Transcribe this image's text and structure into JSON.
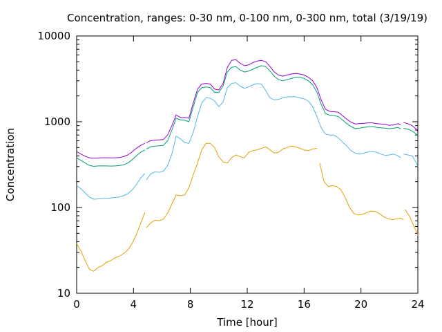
{
  "chart_data": {
    "type": "line",
    "title": "Concentration, ranges: 0-30 nm, 0-100 nm, 0-300 nm, total (3/19/19)",
    "xlabel": "Time [hour]",
    "ylabel": "Concentration",
    "xlim": [
      0,
      24
    ],
    "ylim": [
      10,
      10000
    ],
    "y_scale": "log",
    "grid": false,
    "legend": "none",
    "x_ticks": [
      "0",
      "4",
      "8",
      "12",
      "16",
      "20",
      "24"
    ],
    "y_ticks": [
      "10",
      "100",
      "1000",
      "10000"
    ],
    "series": [
      {
        "color": "#e69f00",
        "segments": [
          {
            "x": [
              0.0,
              0.3,
              0.6,
              0.9,
              1.2,
              1.5,
              1.8,
              2.1,
              2.4,
              2.7,
              3.0,
              3.3,
              3.6,
              3.9,
              4.2,
              4.5,
              4.8
            ],
            "y": [
              38,
              31,
              24,
              19,
              18,
              20,
              21,
              23,
              24,
              26,
              27,
              29,
              32,
              38,
              48,
              65,
              88
            ]
          },
          {
            "x": [
              4.9,
              5.2,
              5.5,
              5.8,
              6.1,
              6.4,
              6.7,
              7.0,
              7.3,
              7.6,
              7.9,
              8.2,
              8.5,
              8.8,
              9.1,
              9.4,
              9.7,
              10.0,
              10.3,
              10.6,
              10.9,
              11.2,
              11.5,
              11.8,
              12.1,
              12.4,
              12.7,
              13.0,
              13.3,
              13.6,
              13.9,
              14.2,
              14.5,
              14.8,
              15.1,
              15.4,
              15.7,
              16.0,
              16.3,
              16.6,
              16.9
            ],
            "y": [
              58,
              66,
              71,
              70,
              73,
              86,
              110,
              140,
              137,
              140,
              170,
              240,
              330,
              470,
              560,
              560,
              500,
              390,
              340,
              330,
              380,
              410,
              390,
              380,
              440,
              460,
              470,
              490,
              510,
              470,
              430,
              440,
              480,
              500,
              520,
              510,
              490,
              470,
              460,
              480,
              490
            ]
          },
          {
            "x": [
              17.1,
              17.4,
              17.7,
              18.0,
              18.3,
              18.6,
              18.9,
              19.2,
              19.5,
              19.8,
              20.1,
              20.4,
              20.7,
              21.0,
              21.3,
              21.6,
              21.9,
              22.2,
              22.5,
              22.8,
              23.0
            ],
            "y": [
              330,
              200,
              176,
              180,
              175,
              160,
              130,
              100,
              85,
              82,
              83,
              87,
              91,
              90,
              85,
              78,
              74,
              72,
              74,
              75,
              72
            ]
          },
          {
            "x": [
              23.1,
              23.4,
              23.7,
              24.0
            ],
            "y": [
              95,
              80,
              62,
              48
            ]
          }
        ]
      },
      {
        "color": "#56b4e9",
        "segments": [
          {
            "x": [
              0.0,
              0.3,
              0.6,
              0.9,
              1.2,
              1.5,
              1.8,
              2.1,
              2.4,
              2.7,
              3.0,
              3.3,
              3.6,
              3.9,
              4.2,
              4.5,
              4.8
            ],
            "y": [
              180,
              165,
              148,
              132,
              125,
              126,
              127,
              128,
              129,
              131,
              133,
              137,
              145,
              160,
              185,
              220,
              250
            ]
          },
          {
            "x": [
              4.9,
              5.2,
              5.5,
              5.8,
              6.1,
              6.4,
              6.7,
              7.0,
              7.3,
              7.6,
              7.9,
              8.2,
              8.5,
              8.8,
              9.1,
              9.4,
              9.7,
              10.0,
              10.3,
              10.6,
              10.9,
              11.2,
              11.5,
              11.8,
              12.1,
              12.4,
              12.7,
              13.0,
              13.3,
              13.6,
              13.9,
              14.2,
              14.5,
              14.8,
              15.1,
              15.4,
              15.7,
              16.0,
              16.3,
              16.6,
              16.9,
              17.2,
              17.5,
              17.8,
              18.1,
              18.4,
              18.7,
              19.0,
              19.3,
              19.6,
              19.9,
              20.2,
              20.5,
              20.8,
              21.1,
              21.4,
              21.7,
              22.0,
              22.3,
              22.6,
              22.8
            ],
            "y": [
              210,
              245,
              260,
              258,
              265,
              310,
              420,
              680,
              630,
              570,
              560,
              750,
              1150,
              1650,
              1900,
              1880,
              1750,
              1500,
              1700,
              2500,
              2800,
              2850,
              2600,
              2450,
              2550,
              2700,
              2780,
              2750,
              2300,
              1900,
              1800,
              1820,
              1900,
              1950,
              1960,
              1950,
              1900,
              1850,
              1750,
              1500,
              1150,
              850,
              720,
              700,
              700,
              650,
              580,
              520,
              460,
              430,
              420,
              430,
              445,
              450,
              440,
              420,
              405,
              410,
              420,
              400,
              380
            ]
          },
          {
            "x": [
              23.0,
              23.3,
              23.6,
              23.9,
              24.0
            ],
            "y": [
              420,
              410,
              400,
              330,
              300
            ]
          }
        ]
      },
      {
        "color": "#009e73",
        "segments": [
          {
            "x": [
              0.0,
              0.3,
              0.6,
              0.9,
              1.2,
              1.5,
              1.8,
              2.1,
              2.4,
              2.7,
              3.0,
              3.3,
              3.6,
              3.9,
              4.2,
              4.5,
              4.8
            ],
            "y": [
              380,
              355,
              330,
              310,
              302,
              305,
              306,
              305,
              304,
              305,
              308,
              315,
              330,
              360,
              400,
              440,
              470
            ]
          },
          {
            "x": [
              4.9,
              5.2,
              5.5,
              5.8,
              6.1,
              6.4,
              6.7,
              7.0,
              7.3,
              7.6,
              7.9,
              8.2,
              8.5,
              8.8,
              9.1,
              9.4,
              9.7,
              10.0,
              10.3,
              10.6,
              10.9,
              11.2,
              11.5,
              11.8,
              12.1,
              12.4,
              12.7,
              13.0,
              13.3,
              13.6,
              13.9,
              14.2,
              14.5,
              14.8,
              15.1,
              15.4,
              15.7,
              16.0,
              16.3,
              16.6,
              16.9,
              17.2,
              17.5,
              17.8,
              18.1,
              18.4,
              18.7,
              19.0,
              19.3,
              19.6,
              19.9,
              20.2,
              20.5,
              20.8,
              21.1,
              21.4,
              21.7,
              22.0,
              22.3,
              22.6,
              22.8
            ],
            "y": [
              480,
              510,
              520,
              525,
              530,
              600,
              800,
              1100,
              1050,
              1040,
              1000,
              1500,
              2200,
              2500,
              2550,
              2500,
              2200,
              2200,
              2600,
              3800,
              4300,
              4400,
              4000,
              3800,
              3900,
              4100,
              4300,
              4500,
              4400,
              3900,
              3400,
              3100,
              3000,
              3100,
              3200,
              3300,
              3300,
              3200,
              3000,
              2700,
              2200,
              1600,
              1250,
              1190,
              1180,
              1150,
              1050,
              950,
              880,
              830,
              840,
              860,
              870,
              880,
              860,
              850,
              840,
              830,
              840,
              860,
              820
            ]
          },
          {
            "x": [
              23.0,
              23.3,
              23.6,
              23.9,
              24.0
            ],
            "y": [
              840,
              820,
              780,
              720,
              680
            ]
          }
        ]
      },
      {
        "color": "#9400d3",
        "segments": [
          {
            "x": [
              0.0,
              0.3,
              0.6,
              0.9,
              1.2,
              1.5,
              1.8,
              2.1,
              2.4,
              2.7,
              3.0,
              3.3,
              3.6,
              3.9,
              4.2,
              4.5,
              4.8
            ],
            "y": [
              450,
              420,
              395,
              380,
              375,
              378,
              380,
              380,
              379,
              380,
              383,
              392,
              410,
              445,
              490,
              530,
              560
            ]
          },
          {
            "x": [
              4.9,
              5.2,
              5.5,
              5.8,
              6.1,
              6.4,
              6.7,
              7.0,
              7.3,
              7.6,
              7.9,
              8.2,
              8.5,
              8.8,
              9.1,
              9.4,
              9.7,
              10.0,
              10.3,
              10.6,
              10.9,
              11.2,
              11.5,
              11.8,
              12.1,
              12.4,
              12.7,
              13.0,
              13.3,
              13.6,
              13.9,
              14.2,
              14.5,
              14.8,
              15.1,
              15.4,
              15.7,
              16.0,
              16.3,
              16.6,
              16.9,
              17.2,
              17.5,
              17.8,
              18.1,
              18.4,
              18.7,
              19.0,
              19.3,
              19.6,
              19.9,
              20.2,
              20.5,
              20.8,
              21.1,
              21.4,
              21.7,
              22.0,
              22.3,
              22.6,
              22.8
            ],
            "y": [
              570,
              600,
              610,
              615,
              620,
              700,
              900,
              1200,
              1120,
              1120,
              1100,
              1650,
              2400,
              2750,
              2800,
              2750,
              2400,
              2350,
              2800,
              4300,
              5200,
              5300,
              4800,
              4500,
              4600,
              4900,
              5100,
              5200,
              5000,
              4400,
              3800,
              3500,
              3400,
              3500,
              3600,
              3650,
              3600,
              3500,
              3300,
              3000,
              2500,
              1800,
              1400,
              1320,
              1310,
              1290,
              1180,
              1070,
              990,
              940,
              950,
              960,
              970,
              970,
              950,
              940,
              930,
              910,
              920,
              950,
              920
            ]
          },
          {
            "x": [
              23.0,
              23.3,
              23.6,
              23.9,
              24.0
            ],
            "y": [
              980,
              950,
              900,
              820,
              760
            ]
          }
        ]
      }
    ]
  }
}
